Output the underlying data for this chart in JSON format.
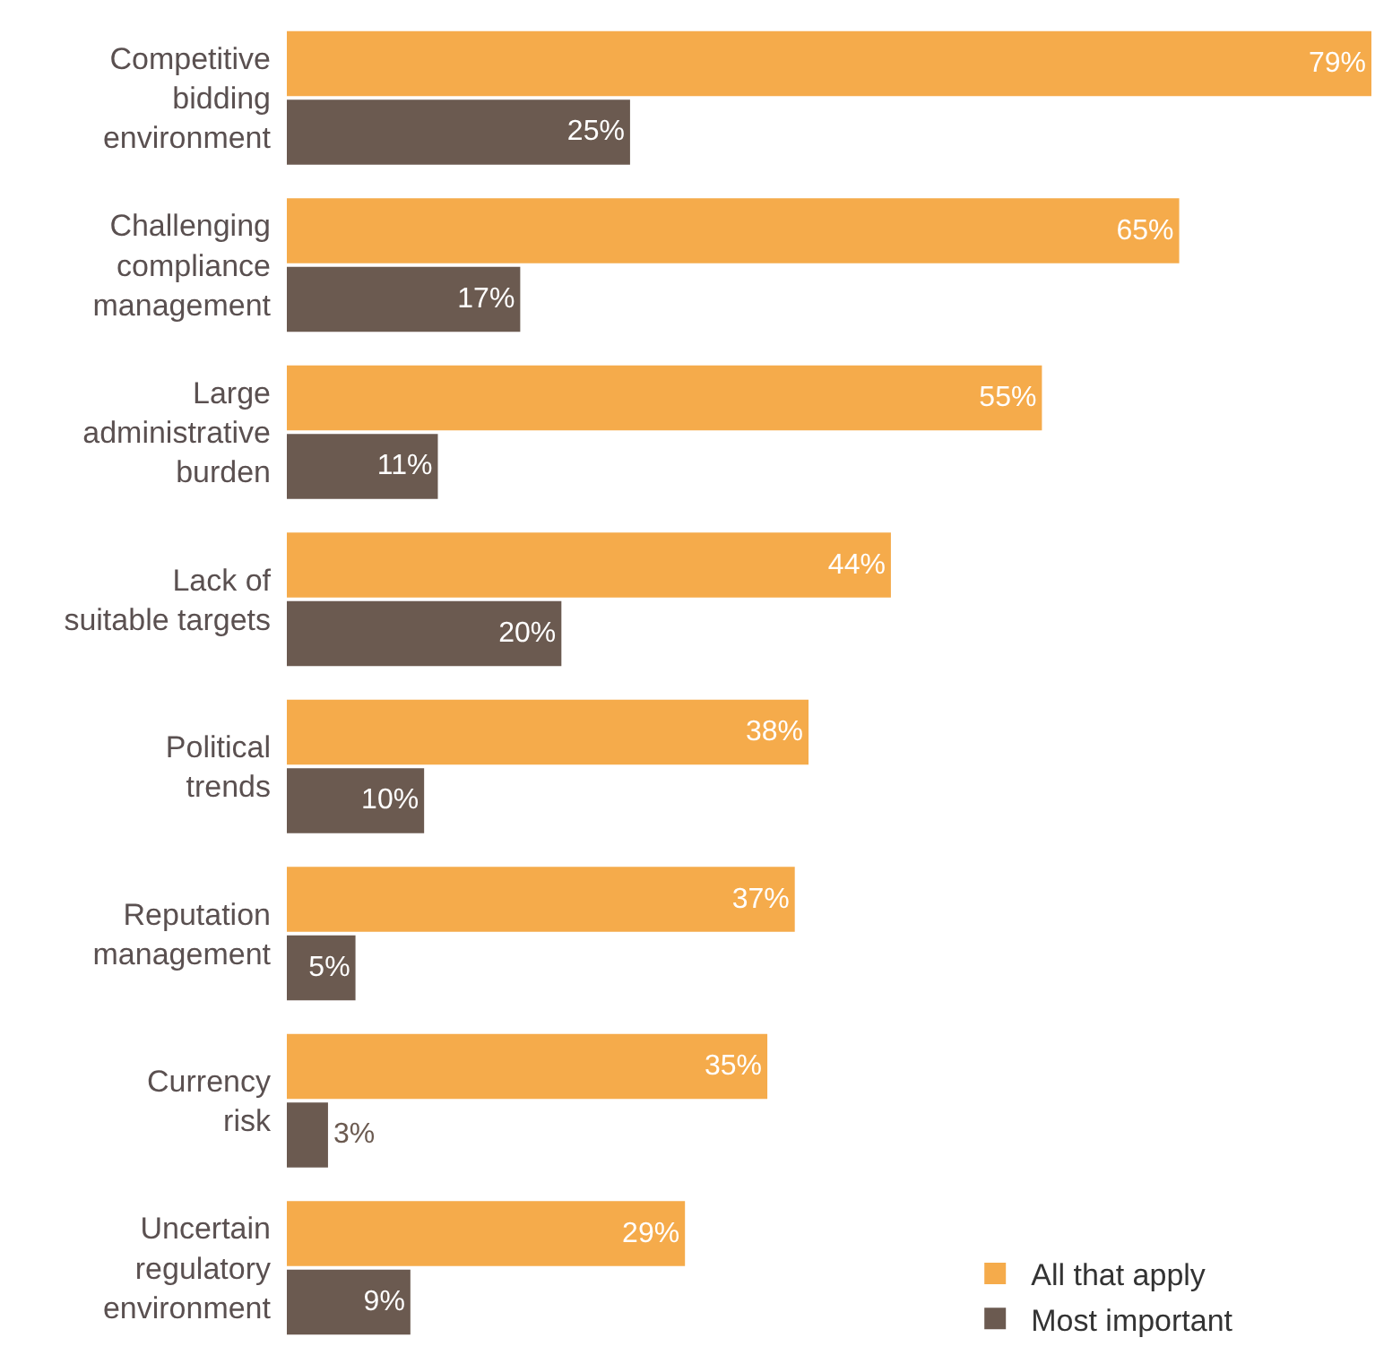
{
  "chart_data": {
    "type": "bar",
    "orientation": "horizontal",
    "categories": [
      "Competitive\nbidding\nenvironment",
      "Challenging\ncompliance\nmanagement",
      "Large\nadministrative\nburden",
      "Lack of\nsuitable targets",
      "Political\ntrends",
      "Reputation\nmanagement",
      "Currency\nrisk",
      "Uncertain\nregulatory\nenvironment"
    ],
    "series": [
      {
        "name": "All that apply",
        "color": "#f5ab4b",
        "values": [
          79,
          65,
          55,
          44,
          38,
          37,
          35,
          29
        ],
        "value_labels": [
          "79%",
          "65%",
          "55%",
          "44%",
          "38%",
          "37%",
          "35%",
          "29%"
        ]
      },
      {
        "name": "Most important",
        "color": "#6b5a50",
        "values": [
          25,
          17,
          11,
          20,
          10,
          5,
          3,
          9
        ],
        "value_labels": [
          "25%",
          "17%",
          "11%",
          "20%",
          "10%",
          "5%",
          "3%",
          "9%"
        ]
      }
    ],
    "xlim": [
      0,
      79
    ],
    "tick_labels": "y",
    "legend": "bottom right"
  }
}
